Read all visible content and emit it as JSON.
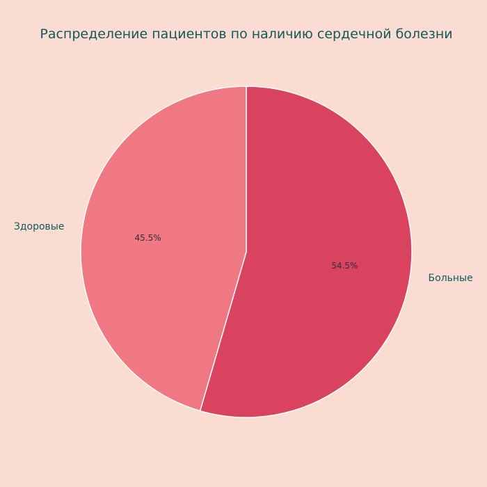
{
  "chart_data": {
    "type": "pie",
    "title": "Распределение пациентов по наличию сердечной болезни",
    "slices": [
      {
        "label": "Больные",
        "value": 54.5,
        "pct_label": "54.5%",
        "color": "#d9435f"
      },
      {
        "label": "Здоровые",
        "value": 45.5,
        "pct_label": "45.5%",
        "color": "#f07882"
      }
    ],
    "start_angle_deg": 90,
    "direction": "clockwise",
    "background": "#fbdcd2",
    "slice_edge_color": "#ffffff"
  }
}
